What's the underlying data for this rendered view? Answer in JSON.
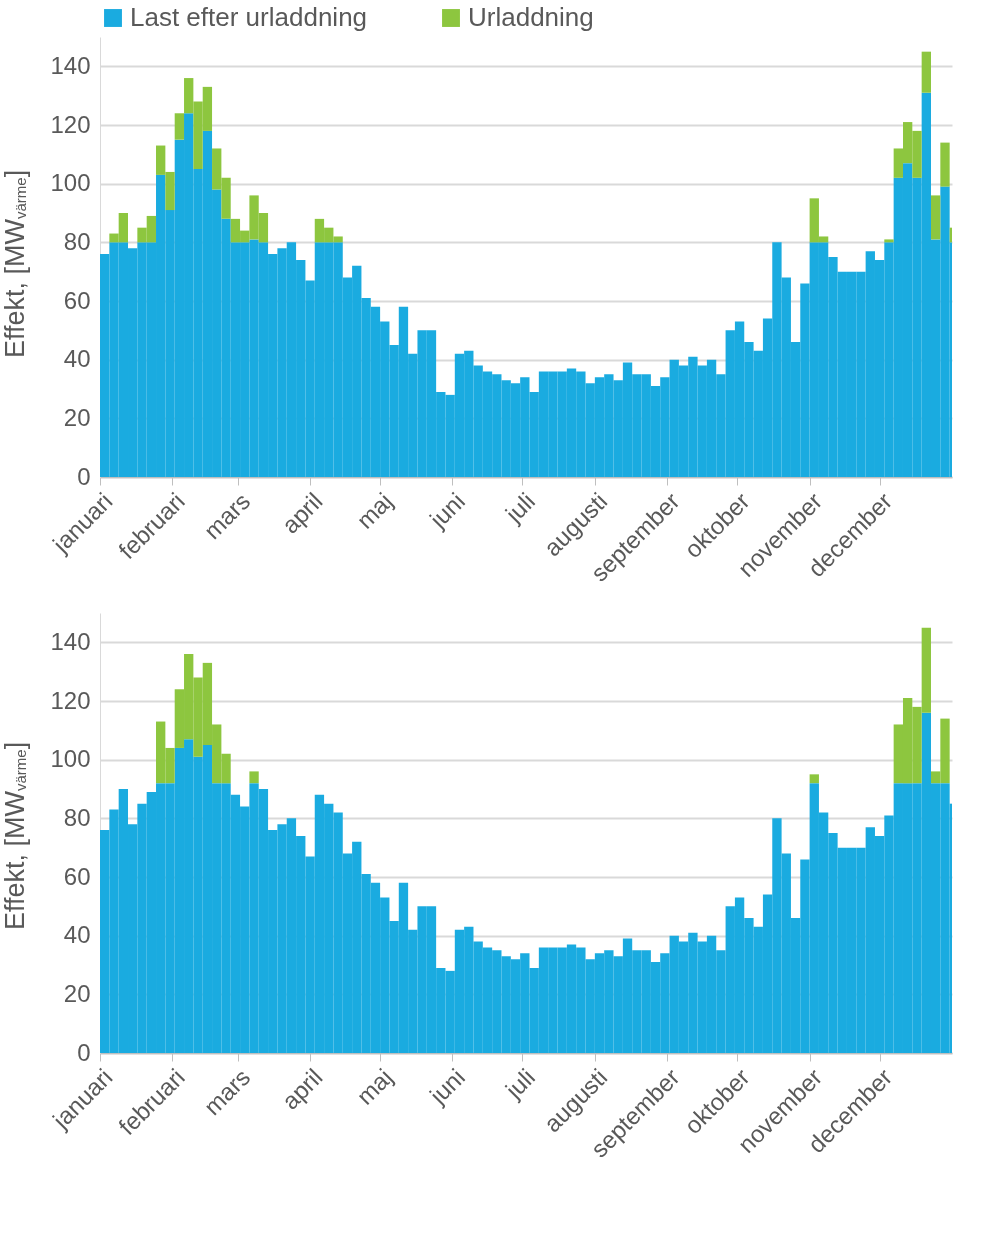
{
  "chart_data": [
    {
      "type": "bar",
      "stacked": true,
      "ylabel": "Effekt, [MW$_{värme}$]",
      "legend": "top",
      "grid": "y",
      "x": [
        "--01-01",
        "--01-05",
        "--01-09",
        "--01-13",
        "--01-17",
        "--01-21",
        "--01-25",
        "--01-29",
        "--02-02",
        "--02-06",
        "--02-10",
        "--02-14",
        "--02-18",
        "--02-22",
        "--02-26",
        "--03-02",
        "--03-06",
        "--03-10",
        "--03-14",
        "--03-18",
        "--03-22",
        "--03-26",
        "--03-30",
        "--04-03",
        "--04-07",
        "--04-11",
        "--04-15",
        "--04-19",
        "--04-23",
        "--04-27",
        "--05-01",
        "--05-05",
        "--05-09",
        "--05-13",
        "--05-17",
        "--05-21",
        "--05-25",
        "--05-29",
        "--06-02",
        "--06-06",
        "--06-10",
        "--06-14",
        "--06-18",
        "--06-22",
        "--06-26",
        "--06-30",
        "--07-04",
        "--07-08",
        "--07-12",
        "--07-16",
        "--07-20",
        "--07-24",
        "--07-28",
        "--08-01",
        "--08-05",
        "--08-09",
        "--08-13",
        "--08-17",
        "--08-21",
        "--08-25",
        "--08-29",
        "--09-02",
        "--09-06",
        "--09-10",
        "--09-14",
        "--09-18",
        "--09-22",
        "--09-26",
        "--09-30",
        "--10-04",
        "--10-08",
        "--10-12",
        "--10-16",
        "--10-20",
        "--10-24",
        "--10-28",
        "--11-01",
        "--11-05",
        "--11-09",
        "--11-13",
        "--11-17",
        "--11-21",
        "--11-25",
        "--11-29",
        "--12-03",
        "--12-07",
        "--12-11",
        "--12-15",
        "--12-19",
        "--12-23",
        "--12-27",
        "--12-31"
      ],
      "xlim": [
        "--01-01",
        "--12-31"
      ],
      "xticks": [
        {
          "value": "--01-01",
          "label": "januari"
        },
        {
          "value": "--02-01",
          "label": "februari"
        },
        {
          "value": "--03-01",
          "label": "mars"
        },
        {
          "value": "--04-01",
          "label": "april"
        },
        {
          "value": "--05-01",
          "label": "maj"
        },
        {
          "value": "--06-01",
          "label": "juni"
        },
        {
          "value": "--07-01",
          "label": "juli"
        },
        {
          "value": "--08-01",
          "label": "augusti"
        },
        {
          "value": "--09-01",
          "label": "september"
        },
        {
          "value": "--10-01",
          "label": "oktober"
        },
        {
          "value": "--11-01",
          "label": "november"
        },
        {
          "value": "--12-01",
          "label": "december"
        }
      ],
      "ylim": [
        0,
        150
      ],
      "yticks": [
        0,
        20,
        40,
        60,
        80,
        100,
        120,
        140
      ],
      "series": [
        {
          "name": "Last efter urladdning",
          "color": "#1aabe0",
          "values": [
            76,
            80,
            80,
            78,
            80,
            80,
            103,
            91,
            115,
            124,
            105,
            118,
            98,
            88,
            80,
            80,
            81,
            80,
            76,
            78,
            80,
            74,
            67,
            80,
            80,
            80,
            68,
            72,
            61,
            58,
            53,
            45,
            58,
            42,
            50,
            50,
            29,
            28,
            42,
            43,
            38,
            36,
            35,
            33,
            32,
            34,
            29,
            36,
            36,
            36,
            37,
            36,
            32,
            34,
            35,
            33,
            39,
            35,
            35,
            31,
            34,
            40,
            38,
            41,
            38,
            40,
            35,
            50,
            53,
            46,
            43,
            54,
            80,
            68,
            46,
            66,
            80,
            80,
            75,
            70,
            70,
            70,
            77,
            74,
            80,
            102,
            107,
            102,
            131,
            81,
            99,
            80
          ]
        },
        {
          "name": "Urladdning",
          "color": "#8dc63f",
          "values": [
            0,
            3,
            10,
            0,
            5,
            9,
            10,
            13,
            9,
            12,
            23,
            15,
            14,
            14,
            8,
            4,
            15,
            10,
            0,
            0,
            0,
            0,
            0,
            8,
            5,
            2,
            0,
            0,
            0,
            0,
            0,
            0,
            0,
            0,
            0,
            0,
            0,
            0,
            0,
            0,
            0,
            0,
            0,
            0,
            0,
            0,
            0,
            0,
            0,
            0,
            0,
            0,
            0,
            0,
            0,
            0,
            0,
            0,
            0,
            0,
            0,
            0,
            0,
            0,
            0,
            0,
            0,
            0,
            0,
            0,
            0,
            0,
            0,
            0,
            0,
            0,
            15,
            2,
            0,
            0,
            0,
            0,
            0,
            0,
            1,
            10,
            14,
            16,
            14,
            15,
            15,
            5
          ]
        }
      ]
    },
    {
      "type": "bar",
      "stacked": true,
      "ylabel": "Effekt, [MW$_{värme}$]",
      "grid": "y",
      "x": [
        "--01-01",
        "--01-05",
        "--01-09",
        "--01-13",
        "--01-17",
        "--01-21",
        "--01-25",
        "--01-29",
        "--02-02",
        "--02-06",
        "--02-10",
        "--02-14",
        "--02-18",
        "--02-22",
        "--02-26",
        "--03-02",
        "--03-06",
        "--03-10",
        "--03-14",
        "--03-18",
        "--03-22",
        "--03-26",
        "--03-30",
        "--04-03",
        "--04-07",
        "--04-11",
        "--04-15",
        "--04-19",
        "--04-23",
        "--04-27",
        "--05-01",
        "--05-05",
        "--05-09",
        "--05-13",
        "--05-17",
        "--05-21",
        "--05-25",
        "--05-29",
        "--06-02",
        "--06-06",
        "--06-10",
        "--06-14",
        "--06-18",
        "--06-22",
        "--06-26",
        "--06-30",
        "--07-04",
        "--07-08",
        "--07-12",
        "--07-16",
        "--07-20",
        "--07-24",
        "--07-28",
        "--08-01",
        "--08-05",
        "--08-09",
        "--08-13",
        "--08-17",
        "--08-21",
        "--08-25",
        "--08-29",
        "--09-02",
        "--09-06",
        "--09-10",
        "--09-14",
        "--09-18",
        "--09-22",
        "--09-26",
        "--09-30",
        "--10-04",
        "--10-08",
        "--10-12",
        "--10-16",
        "--10-20",
        "--10-24",
        "--10-28",
        "--11-01",
        "--11-05",
        "--11-09",
        "--11-13",
        "--11-17",
        "--11-21",
        "--11-25",
        "--11-29",
        "--12-03",
        "--12-07",
        "--12-11",
        "--12-15",
        "--12-19",
        "--12-23",
        "--12-27",
        "--12-31"
      ],
      "xlim": [
        "--01-01",
        "--12-31"
      ],
      "xticks": [
        {
          "value": "--01-01",
          "label": "januari"
        },
        {
          "value": "--02-01",
          "label": "februari"
        },
        {
          "value": "--03-01",
          "label": "mars"
        },
        {
          "value": "--04-01",
          "label": "april"
        },
        {
          "value": "--05-01",
          "label": "maj"
        },
        {
          "value": "--06-01",
          "label": "juni"
        },
        {
          "value": "--07-01",
          "label": "juli"
        },
        {
          "value": "--08-01",
          "label": "augusti"
        },
        {
          "value": "--09-01",
          "label": "september"
        },
        {
          "value": "--10-01",
          "label": "oktober"
        },
        {
          "value": "--11-01",
          "label": "november"
        },
        {
          "value": "--12-01",
          "label": "december"
        }
      ],
      "ylim": [
        0,
        150
      ],
      "yticks": [
        0,
        20,
        40,
        60,
        80,
        100,
        120,
        140
      ],
      "series": [
        {
          "color": "#1aabe0",
          "values": [
            76,
            83,
            90,
            78,
            85,
            89,
            92,
            92,
            104,
            107,
            101,
            105,
            92,
            92,
            88,
            84,
            92,
            90,
            76,
            78,
            80,
            74,
            67,
            88,
            85,
            82,
            68,
            72,
            61,
            58,
            53,
            45,
            58,
            42,
            50,
            50,
            29,
            28,
            42,
            43,
            38,
            36,
            35,
            33,
            32,
            34,
            29,
            36,
            36,
            36,
            37,
            36,
            32,
            34,
            35,
            33,
            39,
            35,
            35,
            31,
            34,
            40,
            38,
            41,
            38,
            40,
            35,
            50,
            53,
            46,
            43,
            54,
            80,
            68,
            46,
            66,
            92,
            82,
            75,
            70,
            70,
            70,
            77,
            74,
            81,
            92,
            92,
            92,
            116,
            92,
            92,
            85
          ]
        },
        {
          "color": "#8dc63f",
          "values": [
            0,
            0,
            0,
            0,
            0,
            0,
            21,
            12,
            20,
            29,
            27,
            28,
            20,
            10,
            0,
            0,
            4,
            0,
            0,
            0,
            0,
            0,
            0,
            0,
            0,
            0,
            0,
            0,
            0,
            0,
            0,
            0,
            0,
            0,
            0,
            0,
            0,
            0,
            0,
            0,
            0,
            0,
            0,
            0,
            0,
            0,
            0,
            0,
            0,
            0,
            0,
            0,
            0,
            0,
            0,
            0,
            0,
            0,
            0,
            0,
            0,
            0,
            0,
            0,
            0,
            0,
            0,
            0,
            0,
            0,
            0,
            0,
            0,
            0,
            0,
            0,
            3,
            0,
            0,
            0,
            0,
            0,
            0,
            0,
            0,
            20,
            29,
            26,
            29,
            4,
            22,
            0
          ]
        }
      ]
    }
  ]
}
